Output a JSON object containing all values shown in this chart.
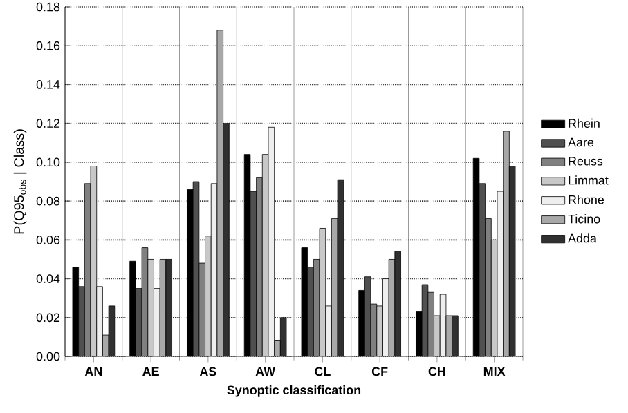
{
  "chart_data": {
    "type": "bar",
    "xlabel": "Synoptic classification",
    "ylabel": "P(Q95$_{obs}$ | Class)",
    "categories": [
      "AN",
      "AE",
      "AS",
      "AW",
      "CL",
      "CF",
      "CH",
      "MIX"
    ],
    "series": [
      {
        "name": "Rhein",
        "color": "#000000",
        "values": [
          0.046,
          0.049,
          0.086,
          0.104,
          0.056,
          0.034,
          0.023,
          0.102
        ]
      },
      {
        "name": "Aare",
        "color": "#505050",
        "values": [
          0.036,
          0.035,
          0.09,
          0.085,
          0.046,
          0.041,
          0.037,
          0.089
        ]
      },
      {
        "name": "Reuss",
        "color": "#808080",
        "values": [
          0.089,
          0.056,
          0.048,
          0.092,
          0.05,
          0.027,
          0.033,
          0.071
        ]
      },
      {
        "name": "Limmat",
        "color": "#c8c8c8",
        "values": [
          0.098,
          0.05,
          0.062,
          0.104,
          0.066,
          0.026,
          0.021,
          0.06
        ]
      },
      {
        "name": "Rhone",
        "color": "#eeeeee",
        "values": [
          0.036,
          0.035,
          0.089,
          0.118,
          0.026,
          0.04,
          0.032,
          0.085
        ]
      },
      {
        "name": "Ticino",
        "color": "#a8a8a8",
        "values": [
          0.011,
          0.05,
          0.168,
          0.008,
          0.071,
          0.05,
          0.021,
          0.116
        ]
      },
      {
        "name": "Adda",
        "color": "#303030",
        "values": [
          0.026,
          0.05,
          0.12,
          0.02,
          0.091,
          0.054,
          0.021,
          0.098
        ]
      }
    ],
    "ylim": [
      0,
      0.18
    ],
    "yticks": [
      {
        "value": 0,
        "label": "0.00"
      },
      {
        "value": 0.02,
        "label": "0.02"
      },
      {
        "value": 0.04,
        "label": "0.04"
      },
      {
        "value": 0.06,
        "label": "0.06"
      },
      {
        "value": 0.08,
        "label": "0.08"
      },
      {
        "value": 0.1,
        "label": "0.10"
      },
      {
        "value": 0.12,
        "label": "0.12"
      },
      {
        "value": 0.14,
        "label": "0.14"
      },
      {
        "value": 0.16,
        "label": "0.16"
      },
      {
        "value": 0.18,
        "label": "0.18"
      }
    ],
    "grid": "y",
    "legend": "right"
  }
}
